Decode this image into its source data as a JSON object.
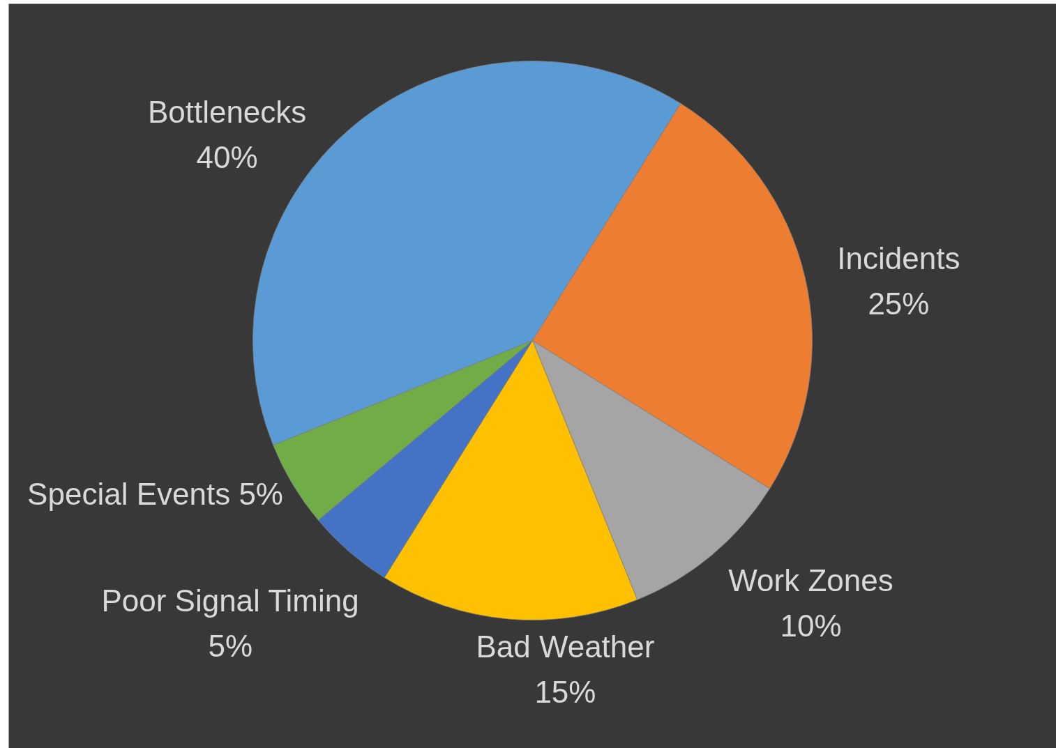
{
  "chart_data": {
    "type": "pie",
    "categories": [
      "Bottlenecks",
      "Incidents",
      "Work Zones",
      "Bad Weather",
      "Poor Signal Timing",
      "Special Events"
    ],
    "values": [
      40,
      25,
      10,
      15,
      5,
      5
    ],
    "value_labels": [
      "40%",
      "25%",
      "10%",
      "15%",
      "5%",
      "5%"
    ],
    "colors": [
      "#5b9bd5",
      "#ed7d31",
      "#a5a5a5",
      "#ffc000",
      "#4472c4",
      "#70ad47"
    ]
  }
}
